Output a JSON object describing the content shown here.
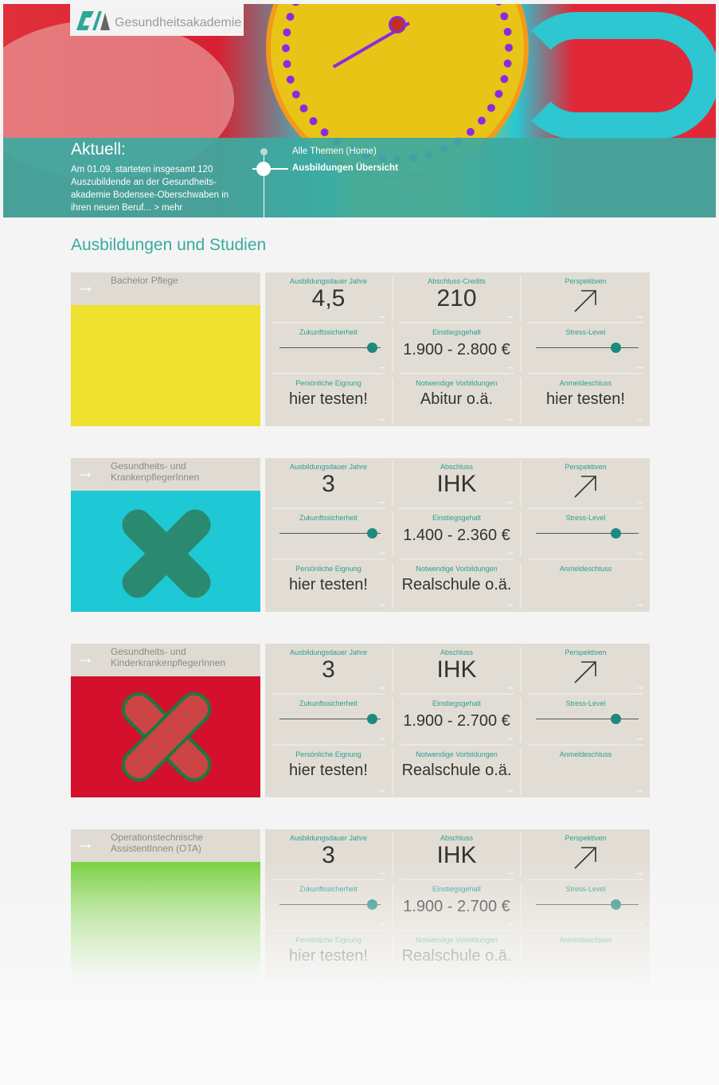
{
  "header": {
    "logo_text": "Gesundheitsakademie"
  },
  "news": {
    "title": "Aktuell:",
    "text": "Am 01.09. starteten insgesamt 120 Auszubildende an der Gesundheits-akademie Bodensee-Oberschwaben in ihren neuen Beruf... > mehr"
  },
  "nav": {
    "items": [
      "Alle Themen (Home)",
      "Ausbildungen Übersicht"
    ]
  },
  "page_title": "Ausbildungen und Studien",
  "colors": {
    "accent": "#3aaa9e",
    "card_bg": "#e2ddd4",
    "band": "#3caaa0"
  },
  "cards": [
    {
      "title": "Bachelor Pflege",
      "image_bg": "#f0e030",
      "labels": [
        "Ausbildungsdauer Jahre",
        "Abschluss-Credits",
        "Perspektiven",
        "Zukunftssicherheit",
        "Einstiegsgehalt",
        "Stress-Level",
        "Persönliche Eignung",
        "Notwendige Vorbildungen",
        "Anmeldeschluss"
      ],
      "duration": "4,5",
      "degree": "210",
      "future_security": 0.92,
      "salary": "1.900 - 2.800 €",
      "stress": 0.78,
      "aptitude": "hier testen!",
      "prerequisite": "Abitur o.ä.",
      "deadline": "hier testen!"
    },
    {
      "title": "Gesundheits- und KrankenpflegerInnen",
      "image_bg": "#1ec8d4",
      "labels": [
        "Ausbildungsdauer Jahre",
        "Abschluss",
        "Perspektiven",
        "Zukunftssicherheit",
        "Einstiegsgehalt",
        "Stress-Level",
        "Persönliche Eignung",
        "Notwendige Vorbildungen",
        "Anmeldeschluss"
      ],
      "duration": "3",
      "degree": "IHK",
      "future_security": 0.92,
      "salary": "1.400 - 2.360 €",
      "stress": 0.78,
      "aptitude": "hier testen!",
      "prerequisite": "Realschule o.ä.",
      "deadline": ""
    },
    {
      "title": "Gesundheits- und KinderkrankenpflegerInnen",
      "image_bg": "#d4102c",
      "labels": [
        "Ausbildungsdauer Jahre",
        "Abschluss",
        "Perspektiven",
        "Zukunftssicherheit",
        "Einstiegsgehalt",
        "Stress-Level",
        "Persönliche Eignung",
        "Notwendige Vorbildungen",
        "Anmeldeschluss"
      ],
      "duration": "3",
      "degree": "IHK",
      "future_security": 0.92,
      "salary": "1.900 - 2.700 €",
      "stress": 0.78,
      "aptitude": "hier testen!",
      "prerequisite": "Realschule o.ä.",
      "deadline": ""
    },
    {
      "title": "Operationstechnische AssistentInnen (OTA)",
      "image_bg": "#7ad040",
      "labels": [
        "Ausbildungsdauer Jahre",
        "Abschluss",
        "Perspektiven",
        "Zukunftssicherheit",
        "Einstiegsgehalt",
        "Stress-Level",
        "Persönliche Eignung",
        "Notwendige Vorbildungen",
        "Anmeldeschluss"
      ],
      "duration": "3",
      "degree": "IHK",
      "future_security": 0.92,
      "salary": "1.900 - 2.700 €",
      "stress": 0.78,
      "aptitude": "hier testen!",
      "prerequisite": "Realschule o.ä.",
      "deadline": ""
    }
  ]
}
